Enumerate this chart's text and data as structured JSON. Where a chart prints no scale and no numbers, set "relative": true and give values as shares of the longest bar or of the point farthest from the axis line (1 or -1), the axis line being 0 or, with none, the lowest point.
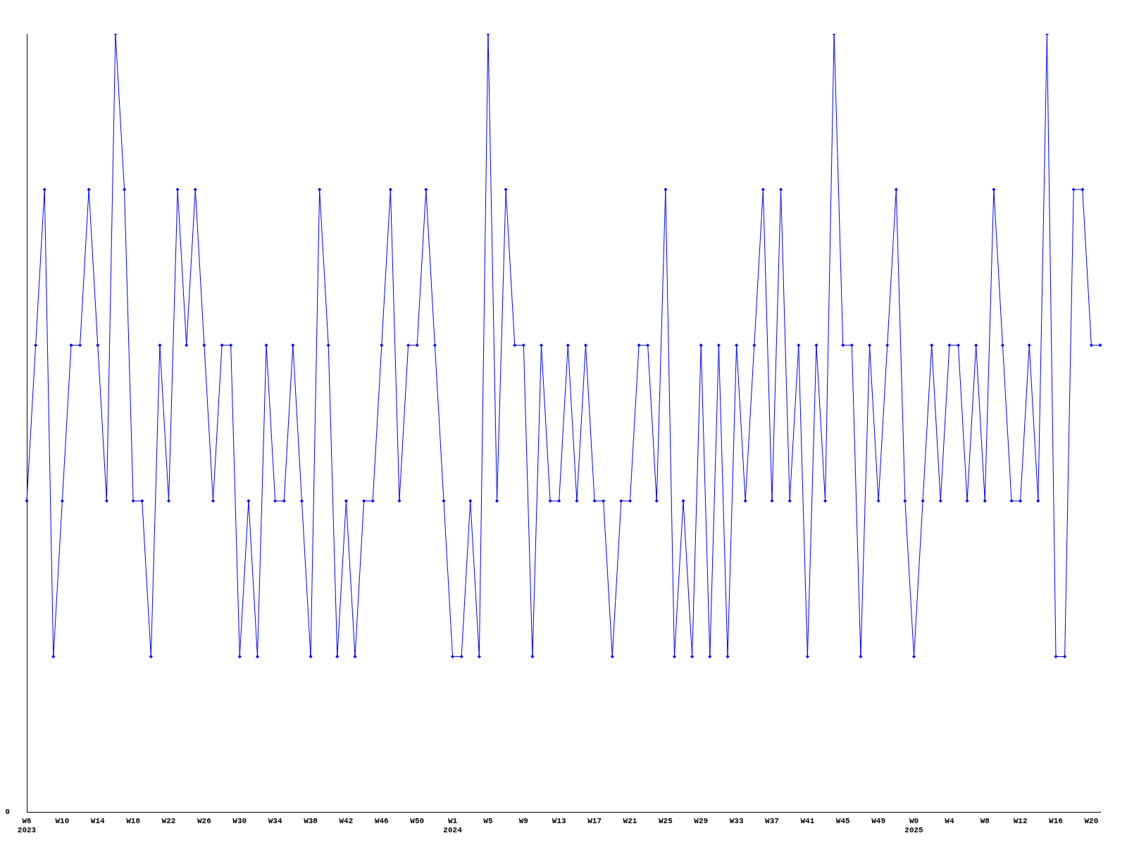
{
  "chart_data": {
    "type": "line",
    "relative": true,
    "color": "#0000ff",
    "marker": "diamond",
    "line_style": "solid",
    "grid": false,
    "legend": false,
    "annotations": [
      "0"
    ],
    "categories": [
      "W6\n2023",
      null,
      null,
      null,
      "W10",
      null,
      null,
      null,
      "W14",
      null,
      null,
      null,
      "W18",
      null,
      null,
      null,
      "W22",
      null,
      null,
      null,
      "W26",
      null,
      null,
      null,
      "W30",
      null,
      null,
      null,
      "W34",
      null,
      null,
      null,
      "W38",
      null,
      null,
      null,
      "W42",
      null,
      null,
      null,
      "W46",
      null,
      null,
      null,
      "W50",
      null,
      null,
      null,
      "W1\n2024",
      null,
      null,
      null,
      "W5",
      null,
      null,
      null,
      "W9",
      null,
      null,
      null,
      "W13",
      null,
      null,
      null,
      "W17",
      null,
      null,
      null,
      "W21",
      null,
      null,
      null,
      "W25",
      null,
      null,
      null,
      "W29",
      null,
      null,
      null,
      "W33",
      null,
      null,
      null,
      "W37",
      null,
      null,
      null,
      "W41",
      null,
      null,
      null,
      "W45",
      null,
      null,
      null,
      "W49",
      null,
      null,
      null,
      "W0\n2025",
      null,
      null,
      null,
      "W4",
      null,
      null,
      null,
      "W8",
      null,
      null,
      null,
      "W12",
      null,
      null,
      null,
      "W16",
      null,
      null,
      null,
      "W20",
      null
    ],
    "values": [
      0.4,
      0.6,
      0.8,
      0.2,
      0.4,
      0.6,
      0.6,
      0.8,
      0.6,
      0.4,
      1,
      0.8,
      0.4,
      0.4,
      0.2,
      0.6,
      0.4,
      0.8,
      0.6,
      0.8,
      0.6,
      0.4,
      0.6,
      0.6,
      0.2,
      0.4,
      0.2,
      0.6,
      0.4,
      0.4,
      0.6,
      0.4,
      0.2,
      0.8,
      0.6,
      0.2,
      0.4,
      0.2,
      0.4,
      0.4,
      0.6,
      0.8,
      0.4,
      0.6,
      0.6,
      0.8,
      0.6,
      0.4,
      0.2,
      0.2,
      0.4,
      0.2,
      1,
      0.4,
      0.8,
      0.6,
      0.6,
      0.2,
      0.6,
      0.4,
      0.4,
      0.6,
      0.4,
      0.6,
      0.4,
      0.4,
      0.2,
      0.4,
      0.4,
      0.6,
      0.6,
      0.4,
      0.8,
      0.2,
      0.4,
      0.2,
      0.6,
      0.2,
      0.6,
      0.2,
      0.6,
      0.4,
      0.6,
      0.8,
      0.4,
      0.8,
      0.4,
      0.6,
      0.2,
      0.6,
      0.4,
      1,
      0.6,
      0.6,
      0.2,
      0.6,
      0.4,
      0.6,
      0.8,
      0.4,
      0.2,
      0.4,
      0.6,
      0.4,
      0.6,
      0.6,
      0.4,
      0.6,
      0.4,
      0.8,
      0.6,
      0.4,
      0.4,
      0.6,
      0.4,
      1,
      0.2,
      0.2,
      0.8,
      0.8,
      0.6,
      0.6
    ]
  }
}
